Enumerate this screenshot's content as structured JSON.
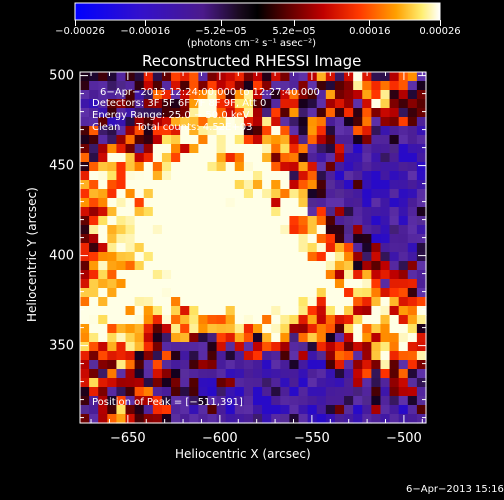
{
  "chart_data": {
    "type": "heatmap",
    "title": "Reconstructed RHESSI Image",
    "xlabel": "Heliocentric X (arcsec)",
    "ylabel": "Heliocentric Y (arcsec)",
    "xlim": [
      -676,
      -488
    ],
    "ylim": [
      307,
      502
    ],
    "x_ticks": [
      -650,
      -600,
      -550,
      -500
    ],
    "y_ticks": [
      350,
      400,
      450,
      500
    ],
    "x_tick_labels": [
      "−650",
      "−600",
      "−550",
      "−500"
    ],
    "y_tick_labels": [
      "350",
      "400",
      "450",
      "500"
    ],
    "colorbar": {
      "range": [
        -0.00026,
        0.00026
      ],
      "tick_values": [
        -0.00026,
        -0.00016,
        -5.2e-05,
        5.2e-05,
        0.00016,
        0.00026
      ],
      "tick_labels": [
        "−0.00026",
        "−0.00016",
        "−5.2e−05",
        "5.2e−05",
        "0.00016",
        "0.00026"
      ],
      "units_label": "(photons cm⁻² s⁻¹ asec⁻²)"
    },
    "annotations": [
      "6−Apr−2013 12:24:00.000 to 12:27:40.000",
      "Detectors: 3F 5F 6F 7F 8F 9F, Att 0",
      "Energy Range: 25.0 − 50.0 keV",
      "Clean     Total counts: 4.52E+03"
    ],
    "peak_label": "Position of Peak = [−511,391]",
    "peak_position": [
      -511,
      391
    ],
    "grid": false,
    "colormap_colors": [
      "#0000ff",
      "#4b1a8c",
      "#000000",
      "#8a0000",
      "#ff2a00",
      "#ffa000",
      "#ffff90",
      "#ffffff"
    ]
  },
  "footer": {
    "date_stamp": "6−Apr−2013 15:16"
  }
}
